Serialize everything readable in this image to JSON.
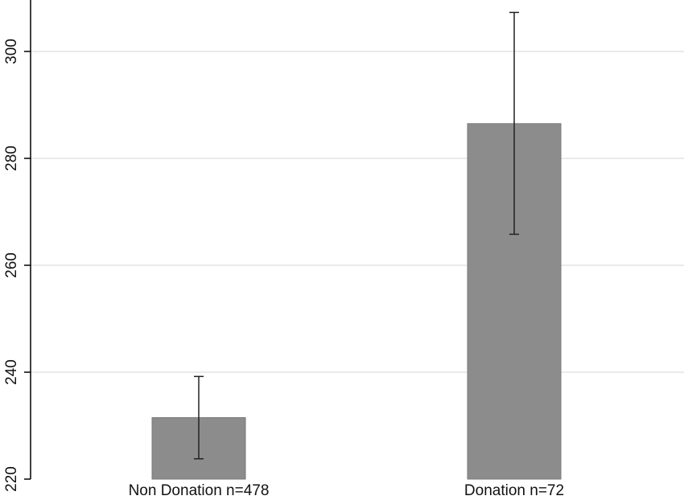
{
  "chart_data": {
    "type": "bar",
    "title": "",
    "xlabel": "",
    "ylabel": "",
    "categories": [
      "Non Donation n=478",
      "Donation n=72"
    ],
    "values": [
      231.5,
      286.5
    ],
    "error_low": [
      223.8,
      265.8
    ],
    "error_high": [
      239.2,
      307.3
    ],
    "ylim": [
      220,
      310
    ],
    "yticks": [
      220,
      240,
      260,
      280,
      300
    ],
    "ytick_labels": [
      "220",
      "240",
      "260",
      "280",
      "300"
    ],
    "grid": true,
    "legend": "none",
    "colors": {
      "bar": "#8c8c8c",
      "bar_edge": "#7a7a7a",
      "error_bar": "#222222",
      "grid": "#e3e3e3",
      "axis": "#000000"
    }
  }
}
